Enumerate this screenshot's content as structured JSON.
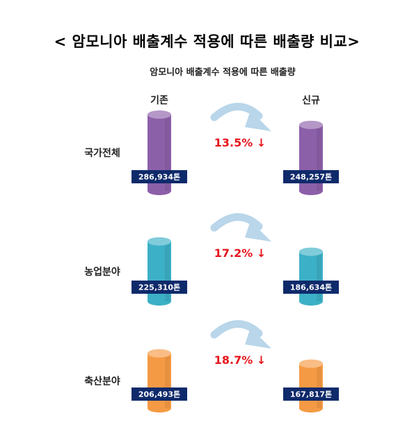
{
  "title": "< 암모니아 배출계수 적용에 따른 배출량 비교>",
  "chart_data": {
    "type": "bar",
    "title": "암모니아 배출계수 적용에 따른 배출량",
    "series_labels": [
      "기존",
      "신규"
    ],
    "rows": [
      {
        "category": "국가전체",
        "old_value": 286934,
        "new_value": 248257,
        "old_label": "286,934톤",
        "new_label": "248,257톤",
        "change_label": "13.5% ↓",
        "color": "#8c5fa9"
      },
      {
        "category": "농업분야",
        "old_value": 225310,
        "new_value": 186634,
        "old_label": "225,310톤",
        "new_label": "186,634톤",
        "change_label": "17.2% ↓",
        "color": "#3cb0c6"
      },
      {
        "category": "축산분야",
        "old_value": 206493,
        "new_value": 167817,
        "old_label": "206,493톤",
        "new_label": "167,817톤",
        "change_label": "18.7% ↓",
        "color": "#f59a44"
      }
    ]
  },
  "colors": {
    "label_box": "#0f2a6b",
    "change_text": "#e5141c",
    "arrow": "#b9d6ea"
  },
  "icons": {
    "transition_arrow": "curved-arrow-icon"
  }
}
